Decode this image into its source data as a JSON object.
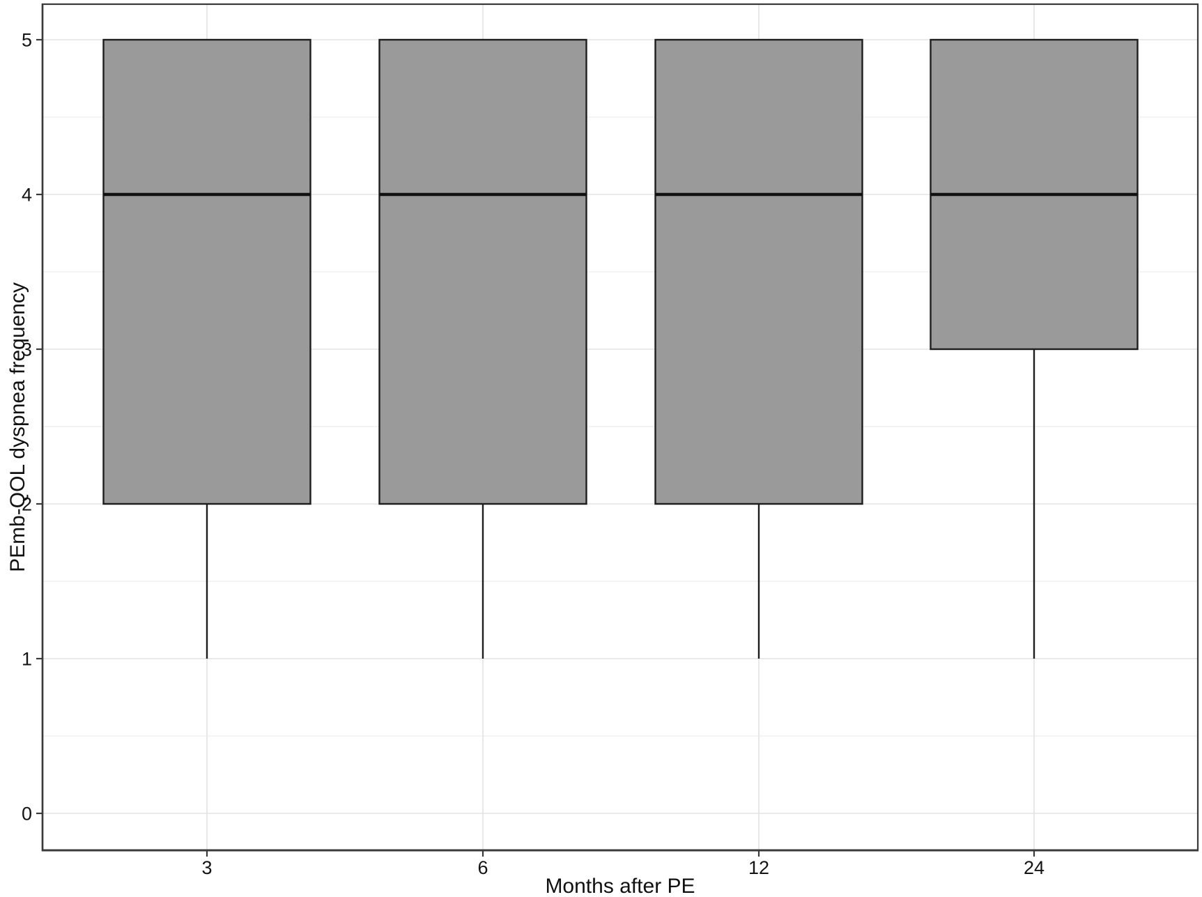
{
  "chart_data": {
    "type": "boxplot",
    "title": "",
    "xlabel": "Months after PE",
    "ylabel": "PEmb-QOL dyspnea frequency",
    "categories": [
      "3",
      "6",
      "12",
      "24"
    ],
    "x_tick_labels": [
      "3",
      "6",
      "12",
      "24"
    ],
    "y_ticks": [
      0,
      1,
      2,
      3,
      4,
      5
    ],
    "y_tick_labels": [
      "0",
      "1",
      "2",
      "3",
      "4",
      "5"
    ],
    "ylim": [
      0,
      5
    ],
    "legend_position": "none",
    "grid": "horizontal major + minor (0.5 steps) and vertical major at each category, light gray on white",
    "boxes": [
      {
        "category": "3",
        "whisker_low": 1,
        "q1": 2,
        "median": 4,
        "q3": 5,
        "whisker_high": 5,
        "outliers": []
      },
      {
        "category": "6",
        "whisker_low": 1,
        "q1": 2,
        "median": 4,
        "q3": 5,
        "whisker_high": 5,
        "outliers": []
      },
      {
        "category": "12",
        "whisker_low": 1,
        "q1": 2,
        "median": 4,
        "q3": 5,
        "whisker_high": 5,
        "outliers": []
      },
      {
        "category": "24",
        "whisker_low": 1,
        "q1": 3,
        "median": 4,
        "q3": 5,
        "whisker_high": 5,
        "outliers": []
      }
    ],
    "colors": {
      "box_fill": "#9a9a9a",
      "box_stroke": "#1d1d1d",
      "median_line": "#111111",
      "grid_major": "#e3e3e3",
      "grid_minor": "#f0f0f0",
      "axis": "#3a3a3a",
      "text": "#141414",
      "background": "#ffffff"
    }
  }
}
